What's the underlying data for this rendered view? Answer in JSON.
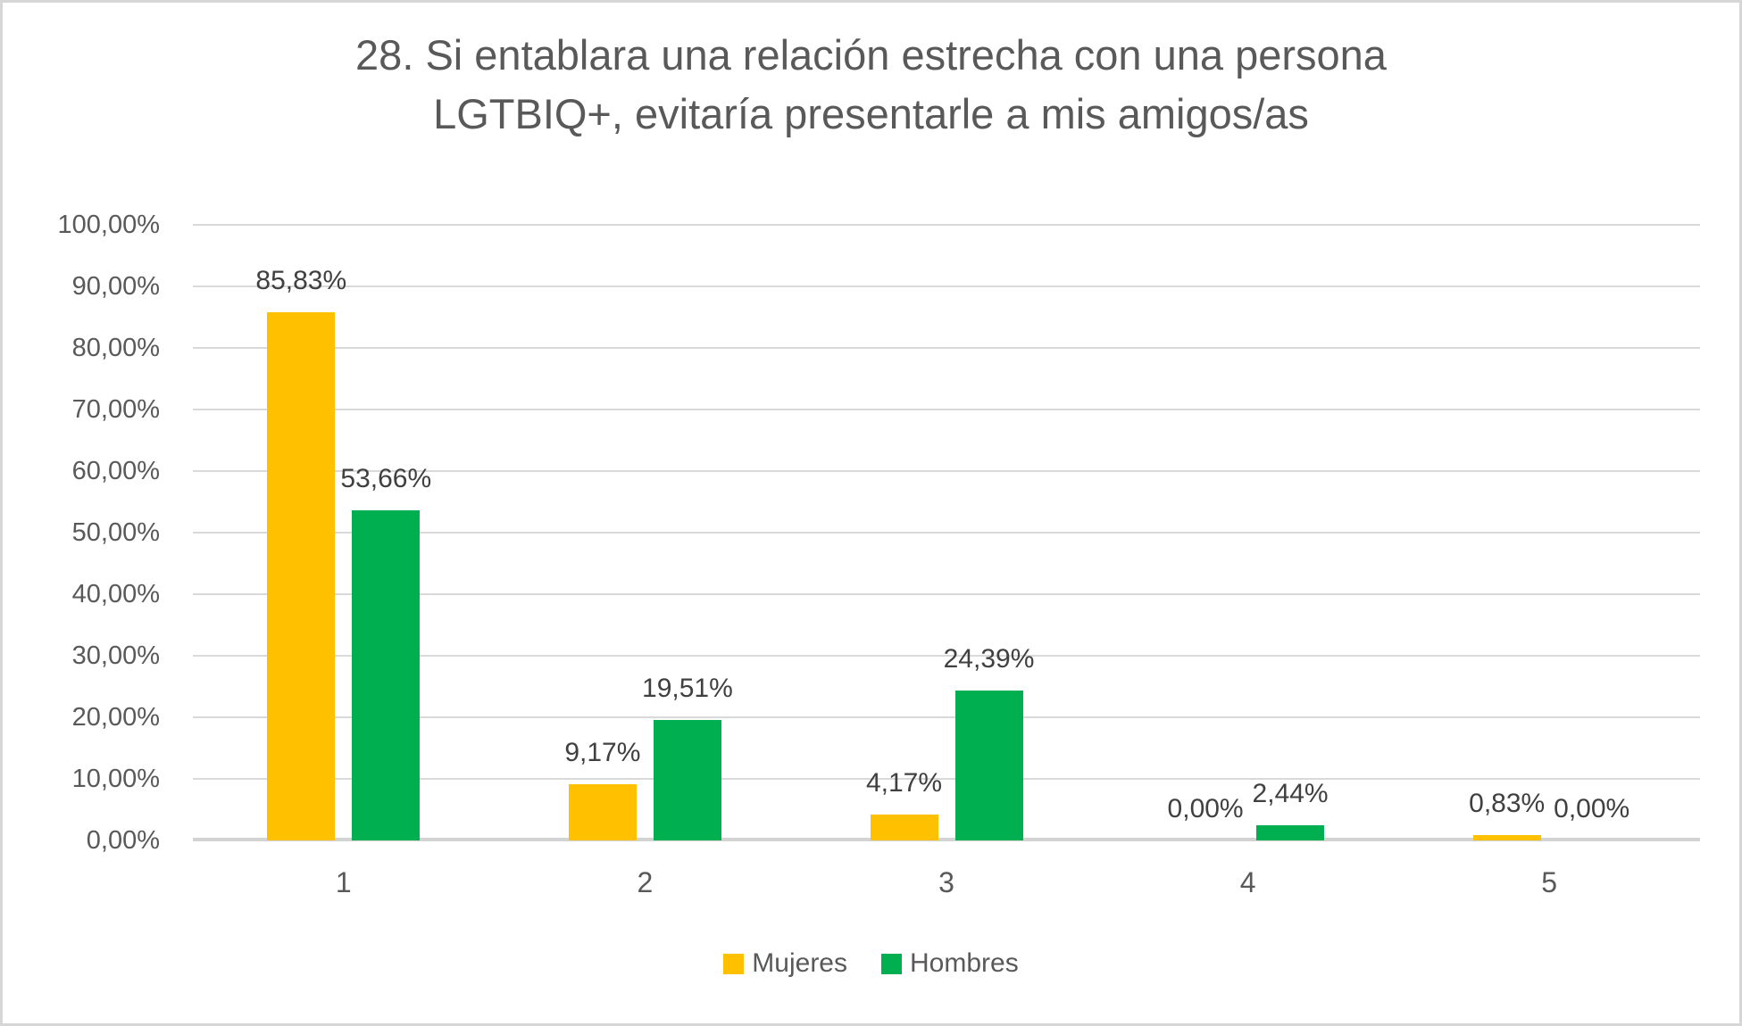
{
  "chart_data": {
    "type": "bar",
    "title": "28. Si entablara una relación estrecha con una persona LGTBIQ+, evitaría presentarle a mis amigos/as",
    "categories": [
      "1",
      "2",
      "3",
      "4",
      "5"
    ],
    "series": [
      {
        "name": "Mujeres",
        "color": "#FFC000",
        "values": [
          85.83,
          9.17,
          4.17,
          0.0,
          0.83
        ],
        "labels": [
          "85,83%",
          "9,17%",
          "4,17%",
          "0,00%",
          "0,83%"
        ]
      },
      {
        "name": "Hombres",
        "color": "#00B050",
        "values": [
          53.66,
          19.51,
          24.39,
          2.44,
          0.0
        ],
        "labels": [
          "53,66%",
          "19,51%",
          "24,39%",
          "2,44%",
          "0,00%"
        ]
      }
    ],
    "xlabel": "",
    "ylabel": "",
    "ylim": [
      0,
      100
    ],
    "ytick_step": 10,
    "ytick_labels": [
      "0,00%",
      "10,00%",
      "20,00%",
      "30,00%",
      "40,00%",
      "50,00%",
      "60,00%",
      "70,00%",
      "80,00%",
      "90,00%",
      "100,00%"
    ],
    "grid": true,
    "legend_position": "bottom",
    "data_labels": "outside-end",
    "decimal_separator": ","
  },
  "style": {
    "title_color": "#595959",
    "axis_label_color": "#595959",
    "data_label_color": "#404040",
    "gridline_color": "#D9D9D9",
    "axis_line_color": "#D3D3D3",
    "frame_border_color": "#D6D6D6",
    "background": "#FFFFFF"
  }
}
